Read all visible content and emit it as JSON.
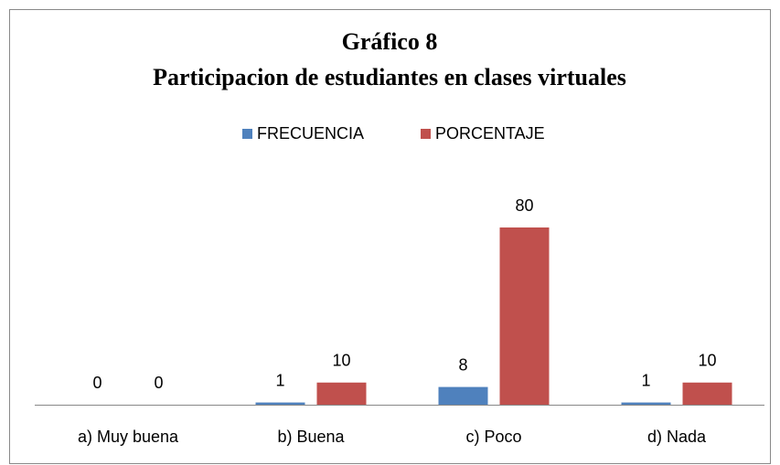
{
  "chart_data": {
    "type": "bar",
    "title": [
      "Gráfico 8",
      "Participacion de estudiantes en clases virtuales"
    ],
    "categories": [
      "a) Muy buena",
      "b) Buena",
      "c) Poco",
      "d) Nada"
    ],
    "series": [
      {
        "name": "FRECUENCIA",
        "color": "#4f81bd",
        "values": [
          0,
          1,
          8,
          1
        ]
      },
      {
        "name": "PORCENTAJE",
        "color": "#c0504d",
        "values": [
          0,
          10,
          80,
          10
        ]
      }
    ],
    "legend": "top"
  }
}
